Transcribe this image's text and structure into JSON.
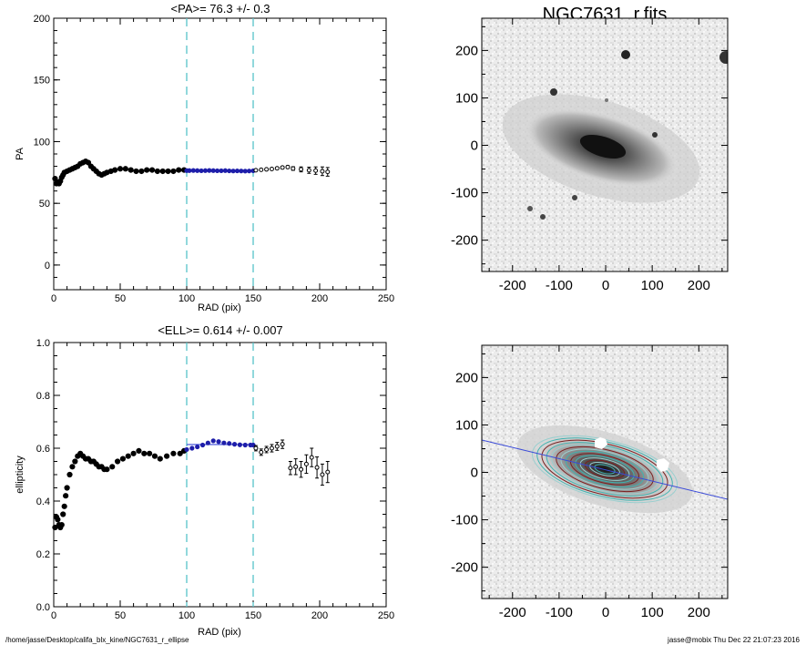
{
  "pa_panel": {
    "title": "<PA>=  76.3 +/-   0.3",
    "ylabel": "PA",
    "xlabel": "RAD (pix)",
    "xticks": [
      "0",
      "50",
      "100",
      "150",
      "200",
      "250"
    ],
    "yticks": [
      "0",
      "50",
      "100",
      "150",
      "200"
    ]
  },
  "ell_panel": {
    "title": "<ELL>= 0.614 +/-  0.007",
    "ylabel": "ellipticity",
    "xlabel": "RAD (pix)",
    "xticks": [
      "0",
      "50",
      "100",
      "150",
      "200",
      "250"
    ],
    "yticks": [
      "0.0",
      "0.2",
      "0.4",
      "0.6",
      "0.8",
      "1.0"
    ]
  },
  "image_panel": {
    "title": "NGC7631_r.fits",
    "xticks": [
      "-200",
      "-100",
      "0",
      "100",
      "200"
    ],
    "yticks": [
      "200",
      "100",
      "0",
      "-100",
      "-200"
    ]
  },
  "model_panel": {
    "xticks": [
      "-200",
      "-100",
      "0",
      "100",
      "200"
    ],
    "yticks": [
      "200",
      "100",
      "0",
      "-100",
      "-200"
    ]
  },
  "footer": {
    "path": "/home/jasse/Desktop/califa_blx_kine/NGC7631_r_ellipse",
    "stamp": "jasse@mobix  Thu Dec 22 21:07:23 2016"
  },
  "colors": {
    "dashed_line": "#56c3c9",
    "fit_points": "#1e1eaa",
    "fit_line": "#3a4ad8",
    "profile": "#000000",
    "contours": "#3fb3b0"
  },
  "chart_data": [
    {
      "type": "scatter",
      "title": "<PA>=  76.3 +/-   0.3",
      "xlabel": "RAD (pix)",
      "ylabel": "PA",
      "xlim": [
        0,
        250
      ],
      "ylim": [
        -20,
        200
      ],
      "vlines": [
        100,
        150
      ],
      "series": [
        {
          "x": [
            1,
            2,
            3,
            4,
            5,
            6,
            7,
            8,
            10,
            12,
            14,
            16,
            18,
            20,
            22,
            24,
            26,
            28,
            30,
            32,
            34,
            36,
            38,
            40,
            43,
            46,
            50,
            54,
            58,
            62,
            66,
            70,
            74,
            78,
            82,
            86,
            90,
            94,
            98
          ],
          "y": [
            70,
            66,
            67,
            66,
            68,
            71,
            73,
            75,
            76,
            77,
            78,
            79,
            80,
            82,
            83,
            84,
            83,
            80,
            78,
            76,
            74,
            73,
            74,
            75,
            76,
            77,
            78,
            78,
            77,
            76,
            76,
            77,
            77,
            76,
            76,
            76,
            76,
            77,
            77
          ]
        },
        {
          "x": [
            100,
            102,
            105,
            108,
            111,
            114,
            117,
            120,
            123,
            126,
            129,
            132,
            135,
            138,
            141,
            144,
            147,
            150
          ],
          "y": [
            76.5,
            76.5,
            76.6,
            76.5,
            76.4,
            76.5,
            76.6,
            76.5,
            76.4,
            76.4,
            76.5,
            76.3,
            76.2,
            76.3,
            76.2,
            76.1,
            76.2,
            76.4
          ]
        },
        {
          "x": [
            152,
            156,
            160,
            164,
            168,
            172,
            176,
            180,
            186,
            192,
            197,
            202,
            206
          ],
          "y": [
            76.8,
            77.2,
            77.5,
            77.8,
            78.4,
            79.0,
            79.4,
            78.2,
            77.5,
            76.8,
            76.5,
            76.0,
            75.5
          ],
          "err": [
            0.5,
            0.6,
            0.7,
            0.8,
            0.9,
            1.0,
            1.1,
            1.5,
            2.0,
            2.5,
            3.0,
            3.5,
            3.5
          ]
        }
      ]
    },
    {
      "type": "scatter",
      "title": "<ELL>= 0.614 +/-  0.007",
      "xlabel": "RAD (pix)",
      "ylabel": "ellipticity",
      "xlim": [
        0,
        250
      ],
      "ylim": [
        0,
        1
      ],
      "vlines": [
        100,
        150
      ],
      "fit_line": {
        "x": [
          100,
          150
        ],
        "y": [
          0.614,
          0.614
        ]
      },
      "series": [
        {
          "x": [
            1,
            2,
            3,
            4,
            5,
            6,
            7,
            8,
            9,
            10,
            12,
            14,
            16,
            18,
            20,
            22,
            24,
            26,
            28,
            30,
            32,
            34,
            36,
            38,
            40,
            44,
            48,
            52,
            56,
            60,
            64,
            68,
            72,
            76,
            80,
            85,
            90,
            95,
            98
          ],
          "y": [
            0.3,
            0.34,
            0.33,
            0.31,
            0.3,
            0.31,
            0.35,
            0.38,
            0.42,
            0.45,
            0.5,
            0.53,
            0.55,
            0.57,
            0.58,
            0.57,
            0.56,
            0.56,
            0.55,
            0.55,
            0.54,
            0.53,
            0.53,
            0.52,
            0.52,
            0.53,
            0.55,
            0.56,
            0.57,
            0.58,
            0.59,
            0.58,
            0.58,
            0.57,
            0.56,
            0.57,
            0.58,
            0.58,
            0.59
          ]
        },
        {
          "x": [
            100,
            104,
            108,
            112,
            116,
            120,
            124,
            128,
            132,
            136,
            140,
            144,
            148,
            150
          ],
          "y": [
            0.595,
            0.6,
            0.605,
            0.612,
            0.62,
            0.628,
            0.625,
            0.62,
            0.618,
            0.615,
            0.613,
            0.612,
            0.612,
            0.612
          ]
        },
        {
          "x": [
            152,
            156,
            160,
            164,
            168,
            172,
            178,
            182,
            186,
            190,
            194,
            198,
            202,
            206
          ],
          "y": [
            0.6,
            0.585,
            0.595,
            0.6,
            0.607,
            0.615,
            0.525,
            0.53,
            0.52,
            0.54,
            0.565,
            0.527,
            0.5,
            0.51
          ],
          "err": [
            0.01,
            0.012,
            0.012,
            0.014,
            0.015,
            0.016,
            0.025,
            0.03,
            0.03,
            0.035,
            0.035,
            0.04,
            0.04,
            0.04
          ]
        }
      ]
    }
  ]
}
